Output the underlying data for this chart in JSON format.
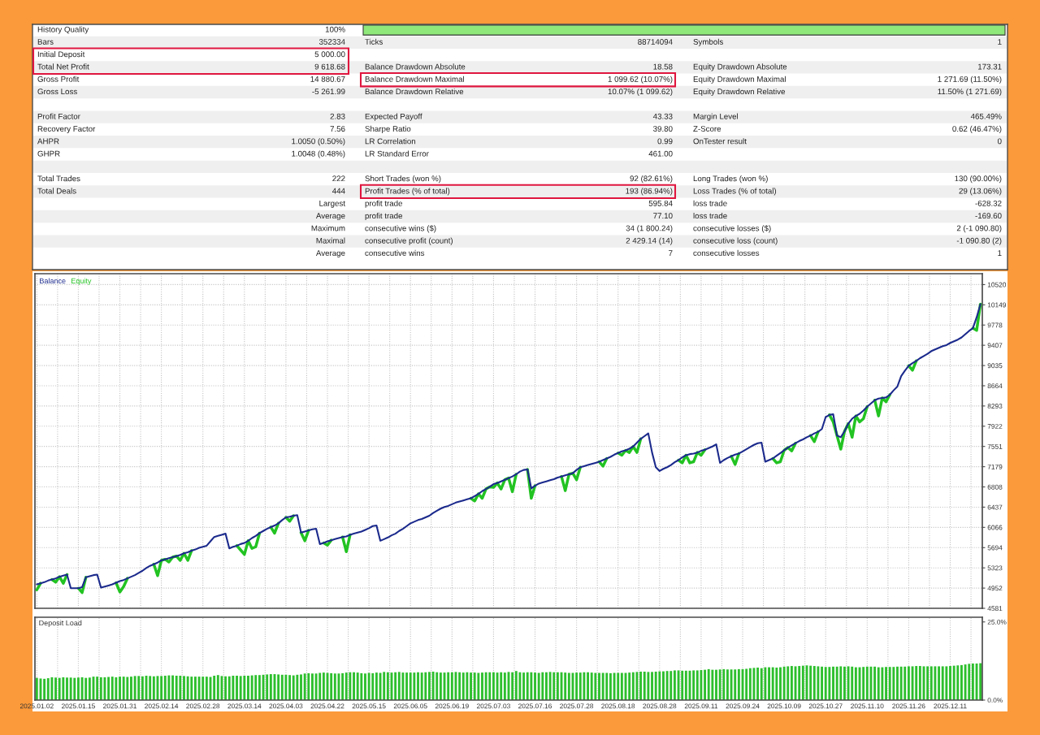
{
  "chart_data": [
    {
      "type": "other",
      "annotations": [
        "History Quality",
        "100%",
        "Bars",
        "352334",
        "Ticks",
        "88714094",
        "Symbols",
        "1",
        "Initial Deposit",
        "5 000.00",
        "Total Net Profit",
        "9 618.68",
        "Balance Drawdown Absolute",
        "18.58",
        "Equity Drawdown Absolute",
        "173.31",
        "Gross Profit",
        "14 880.67",
        "Balance Drawdown Maximal",
        "1 099.62 (10.07%)",
        "Equity Drawdown Maximal",
        "1 271.69 (11.50%)",
        "Gross Loss",
        "-5 261.99",
        "Balance Drawdown Relative",
        "10.07% (1 099.62)",
        "Equity Drawdown Relative",
        "11.50% (1 271.69)",
        "Profit Factor",
        "2.83",
        "Expected Payoff",
        "43.33",
        "Margin Level",
        "465.49%",
        "Recovery Factor",
        "7.56",
        "Sharpe Ratio",
        "39.80",
        "Z-Score",
        "0.62 (46.47%)",
        "AHPR",
        "1.0050 (0.50%)",
        "LR Correlation",
        "0.99",
        "OnTester result",
        "0",
        "GHPR",
        "1.0048 (0.48%)",
        "LR Standard Error",
        "461.00",
        "Total Trades",
        "222",
        "Short Trades (won %)",
        "92 (82.61%)",
        "Long Trades (won %)",
        "130 (90.00%)",
        "Total Deals",
        "444",
        "Profit Trades (% of total)",
        "193 (86.94%)",
        "Loss Trades (% of total)",
        "29 (13.06%)",
        "Largest",
        "profit trade",
        "595.84",
        "loss trade",
        "-628.32",
        "Average",
        "profit trade",
        "77.10",
        "loss trade",
        "-169.60",
        "Maximum",
        "consecutive wins ($)",
        "34 (1 800.24)",
        "consecutive losses ($)",
        "2 (-1 090.80)",
        "Maximal",
        "consecutive profit (count)",
        "2 429.14 (14)",
        "consecutive loss (count)",
        "-1 090.80 (2)",
        "Average",
        "consecutive wins",
        "7",
        "consecutive losses",
        "1"
      ]
    },
    {
      "type": "line",
      "categories": [
        "2025.01.02",
        null,
        null,
        null,
        null,
        null,
        null,
        null,
        null,
        null,
        null,
        "2025.01.15",
        null,
        null,
        null,
        null,
        null,
        null,
        null,
        null,
        null,
        null,
        "2025.01.31",
        null,
        null,
        null,
        null,
        null,
        null,
        null,
        null,
        null,
        null,
        "2025.02.14",
        null,
        null,
        null,
        null,
        null,
        null,
        null,
        null,
        null,
        null,
        "2025.02.28",
        null,
        null,
        null,
        null,
        null,
        null,
        null,
        null,
        null,
        null,
        "2025.03.14",
        null,
        null,
        null,
        null,
        null,
        null,
        null,
        null,
        null,
        null,
        "2025.04.03",
        null,
        null,
        null,
        null,
        null,
        null,
        null,
        null,
        null,
        null,
        "2025.04.22",
        null,
        null,
        null,
        null,
        null,
        null,
        null,
        null,
        null,
        null,
        "2025.05.15",
        null,
        null,
        null,
        null,
        null,
        null,
        null,
        null,
        null,
        null,
        "2025.06.05",
        null,
        null,
        null,
        null,
        null,
        null,
        null,
        null,
        null,
        null,
        "2025.06.19",
        null,
        null,
        null,
        null,
        null,
        null,
        null,
        null,
        null,
        null,
        "2025.07.03",
        null,
        null,
        null,
        null,
        null,
        null,
        null,
        null,
        null,
        null,
        "2025.07.16",
        null,
        null,
        null,
        null,
        null,
        null,
        null,
        null,
        null,
        null,
        "2025.07.28",
        null,
        null,
        null,
        null,
        null,
        null,
        null,
        null,
        null,
        null,
        "2025.08.18",
        null,
        null,
        null,
        null,
        null,
        null,
        null,
        null,
        null,
        null,
        "2025.08.28",
        null,
        null,
        null,
        null,
        null,
        null,
        null,
        null,
        null,
        null,
        "2025.09.11",
        null,
        null,
        null,
        null,
        null,
        null,
        null,
        null,
        null,
        null,
        "2025.09.24",
        null,
        null,
        null,
        null,
        null,
        null,
        null,
        null,
        null,
        null,
        "2025.10.09",
        null,
        null,
        null,
        null,
        null,
        null,
        null,
        null,
        null,
        null,
        "2025.10.27",
        null,
        null,
        null,
        null,
        null,
        null,
        null,
        null,
        null,
        null,
        "2025.11.10",
        null,
        null,
        null,
        null,
        null,
        null,
        null,
        null,
        null,
        null,
        "2025.11.26",
        null,
        null,
        null,
        null,
        null,
        null,
        null,
        null,
        null,
        null,
        "2025.12.11",
        null,
        null,
        null,
        null,
        null,
        null,
        null,
        null
      ],
      "series": [
        {
          "name": "Balance",
          "color": "#1b2a8c",
          "values": [
            5020,
            5040,
            5060,
            5090,
            5110,
            5130,
            5160,
            5180,
            5200,
            4950,
            4950,
            4950,
            4970,
            5150,
            5170,
            5190,
            5200,
            4960,
            4980,
            5000,
            5020,
            5050,
            5080,
            5100,
            5130,
            5160,
            5190,
            5230,
            5270,
            5320,
            5360,
            5390,
            5420,
            5460,
            5480,
            5500,
            5520,
            5540,
            5560,
            5590,
            5610,
            5640,
            5660,
            5690,
            5710,
            5730,
            5810,
            5890,
            5910,
            5930,
            5950,
            5680,
            5710,
            5730,
            5760,
            5780,
            5820,
            5870,
            5910,
            5960,
            6000,
            6040,
            6070,
            6100,
            6140,
            6200,
            6250,
            6260,
            6280,
            6290,
            5970,
            5990,
            6010,
            6030,
            6040,
            5760,
            5780,
            5810,
            5830,
            5850,
            5870,
            5890,
            5900,
            5930,
            5950,
            5970,
            5990,
            6020,
            6050,
            6090,
            6100,
            5820,
            5850,
            5880,
            5920,
            5950,
            6000,
            6040,
            6090,
            6140,
            6170,
            6200,
            6220,
            6250,
            6280,
            6330,
            6370,
            6410,
            6440,
            6460,
            6490,
            6520,
            6540,
            6560,
            6580,
            6600,
            6640,
            6680,
            6730,
            6770,
            6810,
            6860,
            6880,
            6910,
            6940,
            6970,
            7000,
            7040,
            7090,
            7120,
            7130,
            6780,
            6830,
            6870,
            6890,
            6910,
            6930,
            6950,
            6980,
            7000,
            7020,
            7040,
            7060,
            7120,
            7170,
            7190,
            7210,
            7230,
            7250,
            7270,
            7300,
            7330,
            7360,
            7400,
            7430,
            7460,
            7480,
            7510,
            7550,
            7620,
            7690,
            7740,
            7790,
            7440,
            7170,
            7100,
            7140,
            7170,
            7210,
            7260,
            7300,
            7350,
            7390,
            7410,
            7420,
            7440,
            7470,
            7490,
            7520,
            7550,
            7590,
            7250,
            7300,
            7340,
            7370,
            7400,
            7420,
            7460,
            7500,
            7540,
            7580,
            7610,
            7620,
            7270,
            7300,
            7330,
            7380,
            7430,
            7480,
            7530,
            7570,
            7610,
            7650,
            7680,
            7720,
            7750,
            7790,
            7820,
            7870,
            8090,
            8130,
            8140,
            7750,
            7720,
            7830,
            7970,
            8060,
            8110,
            8150,
            8210,
            8280,
            8340,
            8400,
            8430,
            8440,
            8450,
            8500,
            8580,
            8650,
            8840,
            8940,
            9030,
            9080,
            9120,
            9170,
            9210,
            9250,
            9300,
            9330,
            9360,
            9390,
            9410,
            9450,
            9480,
            9510,
            9550,
            9610,
            9670,
            9720,
            9920,
            10160
          ]
        },
        {
          "name": "Equity",
          "color": "#22c322",
          "values": [
            4920,
            5040,
            null,
            null,
            5110,
            5060,
            5160,
            5040,
            5200,
            null,
            null,
            4950,
            4870,
            5150,
            null,
            null,
            null,
            null,
            null,
            null,
            null,
            5050,
            4880,
            4980,
            5130,
            null,
            null,
            null,
            null,
            null,
            null,
            5390,
            5180,
            5460,
            5480,
            5430,
            5520,
            5540,
            5460,
            5590,
            5460,
            5640,
            null,
            null,
            null,
            null,
            null,
            null,
            null,
            null,
            null,
            null,
            null,
            5730,
            5650,
            5570,
            5820,
            5680,
            5710,
            5960,
            null,
            null,
            6070,
            5960,
            6140,
            null,
            6250,
            6180,
            6280,
            null,
            5970,
            5820,
            6010,
            null,
            null,
            null,
            5780,
            5740,
            5830,
            null,
            null,
            5890,
            5620,
            5930,
            null,
            null,
            null,
            null,
            null,
            null,
            null,
            null,
            null,
            null,
            null,
            null,
            null,
            null,
            null,
            null,
            null,
            null,
            null,
            null,
            null,
            null,
            null,
            null,
            null,
            null,
            null,
            null,
            null,
            null,
            null,
            6600,
            6550,
            6680,
            6600,
            6770,
            6810,
            6800,
            6880,
            6770,
            6940,
            6970,
            6720,
            7040,
            null,
            null,
            7130,
            6600,
            6830,
            null,
            null,
            null,
            null,
            null,
            null,
            7000,
            6740,
            7040,
            7060,
            6940,
            7170,
            null,
            null,
            null,
            null,
            7270,
            7190,
            7330,
            null,
            null,
            7430,
            7390,
            7480,
            7440,
            7550,
            7440,
            7690,
            null,
            null,
            null,
            null,
            null,
            null,
            null,
            null,
            null,
            7300,
            7250,
            7390,
            7250,
            7270,
            7440,
            7390,
            7490,
            null,
            null,
            null,
            null,
            null,
            null,
            7370,
            7220,
            7420,
            null,
            null,
            null,
            null,
            null,
            null,
            null,
            null,
            7330,
            7250,
            7270,
            7480,
            7530,
            7470,
            7610,
            null,
            null,
            null,
            7750,
            7640,
            7820,
            null,
            null,
            8130,
            8000,
            7750,
            7500,
            7830,
            7970,
            7720,
            8110,
            8000,
            8060,
            8280,
            null,
            8400,
            8110,
            8440,
            8370,
            8500,
            null,
            null,
            null,
            null,
            9030,
            8950,
            9120,
            null,
            null,
            null,
            null,
            null,
            null,
            null,
            null,
            null,
            null,
            null,
            null,
            null,
            null,
            9720,
            9680,
            10160
          ]
        }
      ],
      "ylim": [
        4581,
        10720
      ],
      "yticks": [
        4581,
        4952,
        5323,
        5694,
        6066,
        6437,
        6808,
        7179,
        7551,
        7922,
        8293,
        8664,
        9035,
        9407,
        9778,
        10149,
        10520
      ],
      "grid": true,
      "legend": "top left",
      "tick_labels": "y"
    },
    {
      "type": "bar",
      "title": "Deposit Load",
      "categories": [
        "2025.01.02",
        null,
        null,
        null,
        null,
        null,
        null,
        null,
        null,
        null,
        null,
        "2025.01.15",
        null,
        null,
        null,
        null,
        null,
        null,
        null,
        null,
        null,
        null,
        "2025.01.31",
        null,
        null,
        null,
        null,
        null,
        null,
        null,
        null,
        null,
        null,
        "2025.02.14",
        null,
        null,
        null,
        null,
        null,
        null,
        null,
        null,
        null,
        null,
        "2025.02.28",
        null,
        null,
        null,
        null,
        null,
        null,
        null,
        null,
        null,
        null,
        "2025.03.14",
        null,
        null,
        null,
        null,
        null,
        null,
        null,
        null,
        null,
        null,
        "2025.04.03",
        null,
        null,
        null,
        null,
        null,
        null,
        null,
        null,
        null,
        null,
        "2025.04.22",
        null,
        null,
        null,
        null,
        null,
        null,
        null,
        null,
        null,
        null,
        "2025.05.15",
        null,
        null,
        null,
        null,
        null,
        null,
        null,
        null,
        null,
        null,
        "2025.06.05",
        null,
        null,
        null,
        null,
        null,
        null,
        null,
        null,
        null,
        null,
        "2025.06.19",
        null,
        null,
        null,
        null,
        null,
        null,
        null,
        null,
        null,
        null,
        "2025.07.03",
        null,
        null,
        null,
        null,
        null,
        null,
        null,
        null,
        null,
        null,
        "2025.07.16",
        null,
        null,
        null,
        null,
        null,
        null,
        null,
        null,
        null,
        null,
        "2025.07.28",
        null,
        null,
        null,
        null,
        null,
        null,
        null,
        null,
        null,
        null,
        "2025.08.18",
        null,
        null,
        null,
        null,
        null,
        null,
        null,
        null,
        null,
        null,
        "2025.08.28",
        null,
        null,
        null,
        null,
        null,
        null,
        null,
        null,
        null,
        null,
        "2025.09.11",
        null,
        null,
        null,
        null,
        null,
        null,
        null,
        null,
        null,
        null,
        "2025.09.24",
        null,
        null,
        null,
        null,
        null,
        null,
        null,
        null,
        null,
        null,
        "2025.10.09",
        null,
        null,
        null,
        null,
        null,
        null,
        null,
        null,
        null,
        null,
        "2025.10.27",
        null,
        null,
        null,
        null,
        null,
        null,
        null,
        null,
        null,
        null,
        "2025.11.10",
        null,
        null,
        null,
        null,
        null,
        null,
        null,
        null,
        null,
        null,
        "2025.11.26",
        null,
        null,
        null,
        null,
        null,
        null,
        null,
        null,
        null,
        null,
        "2025.12.11",
        null,
        null,
        null,
        null,
        null,
        null,
        null,
        null
      ],
      "series": [
        {
          "color": "#2dbf2d",
          "values": [
            7.1,
            6.9,
            6.8,
            7.0,
            7.3,
            7.2,
            7.1,
            7.3,
            7.2,
            7.2,
            7.1,
            7.2,
            7.3,
            7.1,
            7.2,
            7.5,
            7.5,
            7.3,
            7.3,
            7.4,
            7.5,
            7.3,
            7.5,
            7.5,
            7.4,
            7.5,
            7.7,
            7.7,
            7.6,
            7.8,
            7.7,
            7.6,
            7.7,
            7.7,
            7.8,
            7.9,
            7.9,
            7.8,
            7.8,
            7.7,
            7.6,
            7.5,
            7.5,
            7.5,
            7.5,
            7.5,
            7.4,
            7.8,
            8.0,
            7.7,
            7.6,
            7.6,
            7.8,
            7.8,
            7.7,
            7.8,
            7.8,
            7.9,
            8.0,
            8.0,
            8.1,
            8.2,
            8.3,
            8.3,
            8.2,
            8.1,
            8.1,
            8.0,
            7.9,
            8.1,
            8.2,
            8.5,
            8.6,
            8.5,
            8.5,
            8.7,
            8.8,
            8.7,
            8.6,
            8.5,
            8.5,
            8.6,
            8.8,
            8.9,
            8.9,
            8.8,
            8.6,
            8.5,
            8.7,
            8.6,
            8.8,
            8.7,
            9.0,
            8.9,
            8.8,
            8.9,
            9.0,
            8.8,
            8.8,
            8.8,
            8.8,
            8.9,
            8.8,
            8.9,
            9.0,
            9.1,
            8.9,
            8.8,
            8.8,
            8.9,
            8.9,
            9.0,
            8.9,
            8.8,
            8.9,
            8.8,
            8.8,
            8.7,
            8.8,
            8.9,
            8.9,
            8.9,
            8.8,
            8.9,
            8.8,
            9.0,
            8.9,
            9.3,
            8.9,
            8.8,
            8.9,
            8.9,
            8.8,
            8.7,
            8.9,
            8.9,
            9.0,
            8.9,
            8.9,
            8.9,
            8.8,
            8.7,
            8.7,
            8.8,
            8.8,
            8.9,
            8.9,
            8.8,
            8.7,
            8.7,
            8.7,
            8.7,
            8.6,
            8.7,
            8.7,
            8.7,
            8.7,
            8.8,
            8.9,
            9.0,
            9.1,
            9.1,
            9.0,
            9.0,
            9.1,
            9.2,
            9.2,
            9.3,
            9.3,
            9.5,
            9.5,
            9.4,
            9.4,
            9.4,
            9.5,
            9.5,
            9.6,
            9.7,
            9.9,
            9.7,
            9.7,
            9.8,
            9.9,
            9.8,
            9.8,
            9.8,
            9.9,
            9.9,
            10.0,
            10.2,
            10.3,
            10.4,
            10.2,
            10.5,
            10.5,
            10.5,
            10.4,
            10.5,
            10.7,
            10.8,
            10.9,
            10.8,
            10.9,
            11.0,
            11.1,
            11.0,
            10.9,
            10.8,
            10.7,
            10.6,
            10.6,
            10.7,
            10.7,
            10.8,
            10.7,
            10.8,
            10.7,
            10.5,
            10.5,
            10.6,
            10.7,
            10.7,
            10.7,
            10.5,
            10.5,
            10.6,
            10.6,
            10.6,
            10.7,
            10.7,
            10.7,
            10.8,
            10.8,
            10.9,
            10.9,
            10.8,
            10.8,
            10.8,
            10.8,
            10.8,
            10.8,
            10.8,
            10.9,
            11.0,
            11.1,
            11.2,
            11.4,
            11.6,
            11.7,
            11.7,
            11.8
          ]
        }
      ],
      "ylim": [
        0,
        26.5
      ],
      "yticks": [
        {
          "value": 0,
          "label": "0.0%"
        },
        {
          "value": 25,
          "label": "25.0%"
        }
      ],
      "grid": "x"
    }
  ]
}
